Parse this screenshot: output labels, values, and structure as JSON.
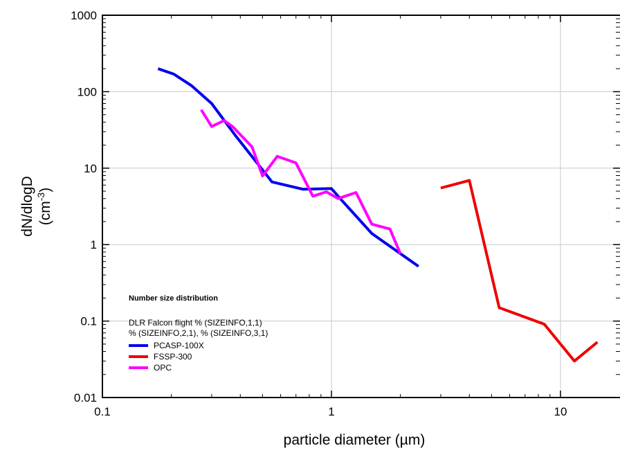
{
  "chart_data": {
    "type": "line",
    "xlabel": "particle diameter (µm)",
    "ylabel_main": "dN/dlogD",
    "ylabel_unit_base": "(cm",
    "ylabel_unit_exp": "-3",
    "ylabel_unit_close": ")",
    "x_scale": "log",
    "y_scale": "log",
    "xlim": [
      0.1,
      20
    ],
    "ylim": [
      0.01,
      1000
    ],
    "x_ticks": [
      {
        "value": 0.1,
        "label": "0.1"
      },
      {
        "value": 1,
        "label": "1"
      },
      {
        "value": 10,
        "label": "10"
      }
    ],
    "y_ticks": [
      {
        "value": 0.01,
        "label": "0.01"
      },
      {
        "value": 0.1,
        "label": "0.1"
      },
      {
        "value": 1,
        "label": "1"
      },
      {
        "value": 10,
        "label": "10"
      },
      {
        "value": 100,
        "label": "100"
      },
      {
        "value": 1000,
        "label": "1000"
      }
    ],
    "grid": true,
    "legend": {
      "placement": "bottom-left",
      "title": "Number size distribution",
      "line1": "DLR Falcon flight % (SIZEINFO,1,1)",
      "line2": "% (SIZEINFO,2,1), % (SIZEINFO,3,1)"
    },
    "series": [
      {
        "name": "PCASP-100X",
        "color": "#0000ee",
        "x": [
          0.175,
          0.205,
          0.245,
          0.3,
          0.38,
          0.55,
          0.75,
          1.0,
          1.1,
          1.5,
          2.4
        ],
        "y": [
          200,
          170,
          120,
          70,
          27,
          6.6,
          5.3,
          5.4,
          3.9,
          1.4,
          0.52
        ]
      },
      {
        "name": "FSSP-300",
        "color": "#ee0000",
        "x": [
          3.0,
          4.0,
          5.4,
          8.5,
          11.5,
          14.5
        ],
        "y": [
          5.5,
          6.9,
          0.15,
          0.091,
          0.03,
          0.053
        ]
      },
      {
        "name": "OPC",
        "color": "#ff00ff",
        "x": [
          0.27,
          0.3,
          0.34,
          0.37,
          0.45,
          0.5,
          0.58,
          0.7,
          0.83,
          0.95,
          1.07,
          1.28,
          1.5,
          1.8,
          2.0
        ],
        "y": [
          58,
          35,
          42,
          35,
          19,
          7.9,
          14.3,
          11.7,
          4.3,
          4.9,
          4.0,
          4.8,
          1.85,
          1.6,
          0.76
        ]
      }
    ]
  }
}
